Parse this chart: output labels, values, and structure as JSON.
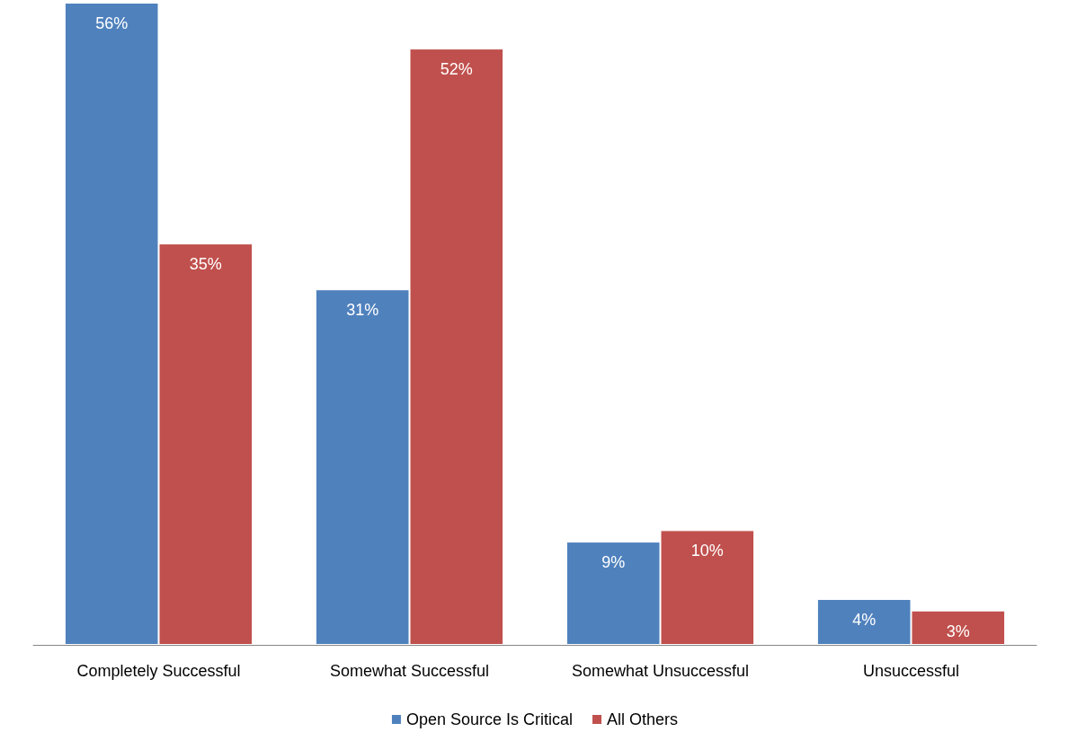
{
  "chart_data": {
    "type": "bar",
    "categories": [
      "Completely Successful",
      "Somewhat Successful",
      "Somewhat Unsuccessful",
      "Unsuccessful"
    ],
    "series": [
      {
        "name": "Open Source Is Critical",
        "color": "#4f81bd",
        "values": [
          56,
          31,
          9,
          4
        ],
        "value_labels": [
          "56%",
          "31%",
          "9%",
          "4%"
        ]
      },
      {
        "name": "All Others",
        "color": "#c0504d",
        "values": [
          35,
          52,
          10,
          3
        ],
        "value_labels": [
          "35%",
          "52%",
          "10%",
          "3%"
        ]
      }
    ],
    "ylim": [
      0,
      56
    ],
    "tick_labels": "x",
    "grid": false,
    "legend": "bottom"
  }
}
